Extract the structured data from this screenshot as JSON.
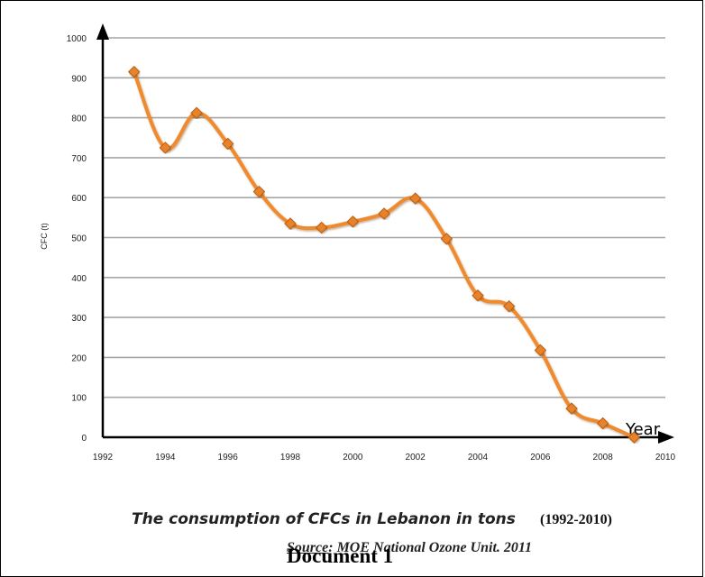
{
  "chart_data": {
    "type": "line",
    "x": [
      1993,
      1994,
      1995,
      1996,
      1997,
      1998,
      1999,
      2000,
      2001,
      2002,
      2003,
      2004,
      2005,
      2006,
      2007,
      2008,
      2009
    ],
    "series": [
      {
        "values": [
          915,
          725,
          812,
          735,
          615,
          535,
          525,
          540,
          560,
          598,
          497,
          355,
          328,
          218,
          72,
          35,
          0
        ]
      }
    ],
    "xlim": [
      1992,
      2010
    ],
    "ylim": [
      0,
      1000
    ],
    "x_ticks": [
      "1992",
      "1994",
      "1996",
      "1998",
      "2000",
      "2002",
      "2004",
      "2006",
      "2008",
      "2010"
    ],
    "y_ticks": [
      "0",
      "100",
      "200",
      "300",
      "400",
      "500",
      "600",
      "700",
      "800",
      "900",
      "1000"
    ],
    "ylabel": "CFC (t)",
    "xlabel": "Year",
    "grid": "horizontal",
    "line_color": "#ef8a2d",
    "marker_color": "#e8832a"
  },
  "caption": {
    "title": "The consumption of CFCs in Lebanon in tons",
    "years": "(1992-2010)",
    "source_label": "Source",
    "source_text": ": MOE National Ozone Unit. 2011",
    "document_label": "Document 1"
  }
}
